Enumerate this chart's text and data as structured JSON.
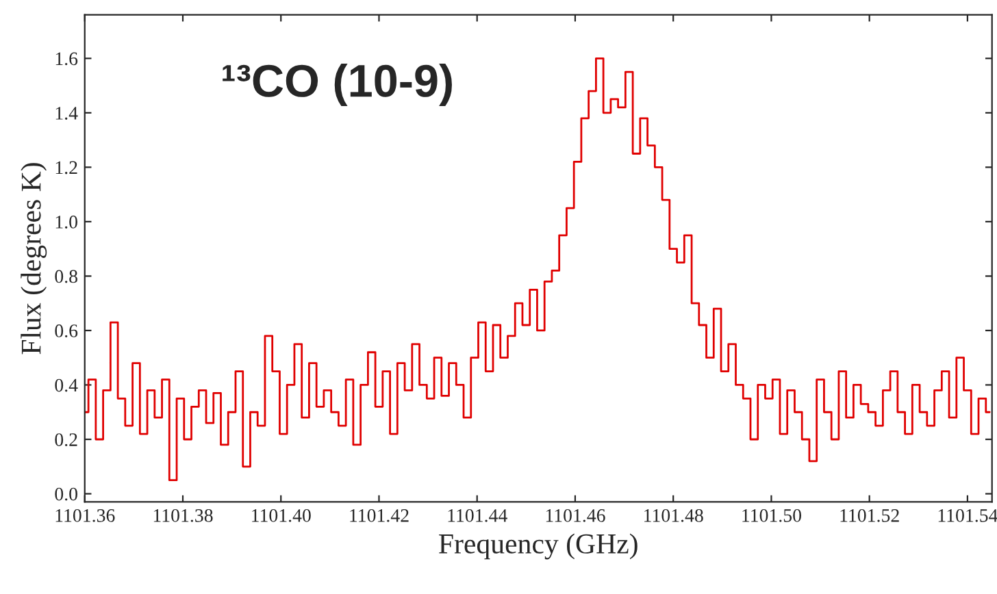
{
  "chart_data": {
    "type": "step",
    "xlabel": "Frequency (GHz)",
    "ylabel": "Flux (degrees K)",
    "annotations": [
      "¹³CO (10-9)"
    ],
    "x": [
      1101.36,
      1101.3615,
      1101.363,
      1101.3645,
      1101.366,
      1101.3675,
      1101.369,
      1101.3705,
      1101.372,
      1101.3735,
      1101.375,
      1101.3765,
      1101.378,
      1101.3795,
      1101.381,
      1101.3825,
      1101.384,
      1101.3855,
      1101.387,
      1101.3885,
      1101.39,
      1101.3915,
      1101.393,
      1101.3945,
      1101.396,
      1101.3975,
      1101.399,
      1101.4005,
      1101.402,
      1101.4035,
      1101.405,
      1101.4065,
      1101.408,
      1101.4095,
      1101.411,
      1101.4125,
      1101.414,
      1101.4155,
      1101.417,
      1101.4185,
      1101.42,
      1101.4215,
      1101.423,
      1101.4245,
      1101.426,
      1101.4275,
      1101.429,
      1101.4305,
      1101.432,
      1101.4335,
      1101.435,
      1101.4365,
      1101.438,
      1101.4395,
      1101.441,
      1101.4425,
      1101.444,
      1101.4455,
      1101.447,
      1101.4485,
      1101.45,
      1101.4515,
      1101.453,
      1101.4545,
      1101.456,
      1101.4575,
      1101.459,
      1101.4605,
      1101.462,
      1101.4635,
      1101.465,
      1101.4665,
      1101.468,
      1101.4695,
      1101.471,
      1101.4725,
      1101.474,
      1101.4755,
      1101.477,
      1101.4785,
      1101.48,
      1101.4815,
      1101.483,
      1101.4845,
      1101.486,
      1101.4875,
      1101.489,
      1101.4905,
      1101.492,
      1101.4935,
      1101.495,
      1101.4965,
      1101.498,
      1101.4995,
      1101.501,
      1101.5025,
      1101.504,
      1101.5055,
      1101.507,
      1101.5085,
      1101.51,
      1101.5115,
      1101.513,
      1101.5145,
      1101.516,
      1101.5175,
      1101.519,
      1101.5205,
      1101.522,
      1101.5235,
      1101.525,
      1101.5265,
      1101.528,
      1101.5295,
      1101.531,
      1101.5325,
      1101.534,
      1101.5355,
      1101.537,
      1101.5385,
      1101.54,
      1101.5415,
      1101.543,
      1101.5445
    ],
    "series": [
      {
        "color": "#e00000",
        "values": [
          0.3,
          0.42,
          0.2,
          0.38,
          0.63,
          0.35,
          0.25,
          0.48,
          0.22,
          0.38,
          0.28,
          0.42,
          0.05,
          0.35,
          0.2,
          0.32,
          0.38,
          0.26,
          0.37,
          0.18,
          0.3,
          0.45,
          0.1,
          0.3,
          0.25,
          0.58,
          0.45,
          0.22,
          0.4,
          0.55,
          0.28,
          0.48,
          0.32,
          0.38,
          0.3,
          0.25,
          0.42,
          0.18,
          0.4,
          0.52,
          0.32,
          0.45,
          0.22,
          0.48,
          0.38,
          0.55,
          0.4,
          0.35,
          0.5,
          0.36,
          0.48,
          0.4,
          0.28,
          0.5,
          0.63,
          0.45,
          0.62,
          0.5,
          0.58,
          0.7,
          0.62,
          0.75,
          0.6,
          0.78,
          0.82,
          0.95,
          1.05,
          1.22,
          1.38,
          1.48,
          1.6,
          1.4,
          1.45,
          1.42,
          1.55,
          1.25,
          1.38,
          1.28,
          1.2,
          1.08,
          0.9,
          0.85,
          0.95,
          0.7,
          0.62,
          0.5,
          0.68,
          0.45,
          0.55,
          0.4,
          0.35,
          0.2,
          0.4,
          0.35,
          0.42,
          0.22,
          0.38,
          0.3,
          0.2,
          0.12,
          0.42,
          0.3,
          0.2,
          0.45,
          0.28,
          0.4,
          0.33,
          0.3,
          0.25,
          0.38,
          0.45,
          0.3,
          0.22,
          0.4,
          0.3,
          0.25,
          0.38,
          0.45,
          0.28,
          0.5,
          0.38,
          0.22,
          0.35,
          0.3
        ]
      }
    ],
    "xlim": [
      1101.36,
      1101.545
    ],
    "ylim": [
      -0.03,
      1.76
    ],
    "xticks": [
      {
        "value": 1101.36,
        "label": "1101.36"
      },
      {
        "value": 1101.38,
        "label": "1101.38"
      },
      {
        "value": 1101.4,
        "label": "1101.40"
      },
      {
        "value": 1101.42,
        "label": "1101.42"
      },
      {
        "value": 1101.44,
        "label": "1101.44"
      },
      {
        "value": 1101.46,
        "label": "1101.46"
      },
      {
        "value": 1101.48,
        "label": "1101.48"
      },
      {
        "value": 1101.5,
        "label": "1101.50"
      },
      {
        "value": 1101.52,
        "label": "1101.52"
      },
      {
        "value": 1101.54,
        "label": "1101.54"
      }
    ],
    "yticks": [
      {
        "value": 0,
        "label": "0.0"
      },
      {
        "value": 0.2,
        "label": "0.2"
      },
      {
        "value": 0.4,
        "label": "0.4"
      },
      {
        "value": 0.6,
        "label": "0.6"
      },
      {
        "value": 0.8,
        "label": "0.8"
      },
      {
        "value": 1.0,
        "label": "1.0"
      },
      {
        "value": 1.2,
        "label": "1.2"
      },
      {
        "value": 1.4,
        "label": "1.4"
      },
      {
        "value": 1.6,
        "label": "1.6"
      }
    ],
    "grid": false,
    "legend": false
  }
}
